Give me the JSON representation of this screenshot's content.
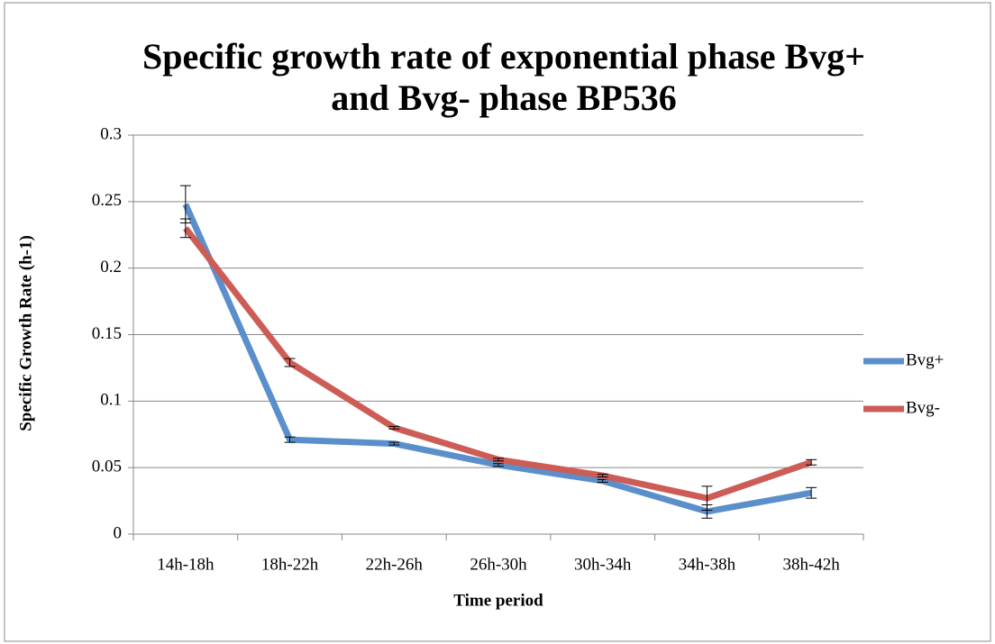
{
  "chart_data": {
    "type": "line",
    "title": "Specific growth rate of exponential phase Bvg+ and Bvg- phase BP536",
    "x_label": "Time period",
    "y_label": "Specific Growth Rate (h-1)",
    "categories": [
      "14h-18h",
      "18h-22h",
      "22h-26h",
      "26h-30h",
      "30h-34h",
      "34h-38h",
      "38h-42h"
    ],
    "series": [
      {
        "name": "Bvg+",
        "color": "#5b8fcb",
        "values": [
          0.248,
          0.071,
          0.068,
          0.052,
          0.04,
          0.017,
          0.031
        ],
        "errors": [
          0.014,
          0.002,
          0.001,
          0.001,
          0.001,
          0.005,
          0.004
        ]
      },
      {
        "name": "Bvg-",
        "color": "#cd5c56",
        "values": [
          0.23,
          0.129,
          0.08,
          0.056,
          0.044,
          0.027,
          0.054
        ],
        "errors": [
          0.007,
          0.003,
          0.001,
          0.001,
          0.001,
          0.009,
          0.002
        ]
      }
    ],
    "ylim": [
      0,
      0.3
    ],
    "yticks": [
      0,
      0.05,
      0.1,
      0.15,
      0.2,
      0.25,
      0.3
    ],
    "grid": true,
    "legend": "right"
  }
}
